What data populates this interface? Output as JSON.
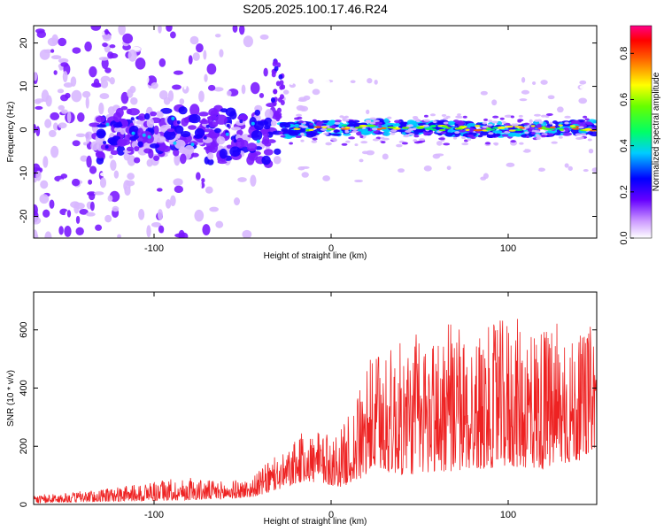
{
  "title": "S205.2025.100.17.46.R24",
  "chart_data": [
    {
      "type": "heatmap",
      "xlabel": "Height of straight line (km)",
      "ylabel": "Frequency (Hz)",
      "xlim": [
        -168,
        150
      ],
      "ylim": [
        -25,
        24
      ],
      "xticks": [
        -100,
        0,
        100
      ],
      "yticks": [
        -20,
        -10,
        0,
        10,
        20
      ],
      "colorbar": {
        "label": "Normalized spectral amplitude",
        "range": [
          0,
          0.92
        ],
        "ticks": [
          0.0,
          0.2,
          0.4,
          0.6,
          0.8
        ],
        "colors": [
          "#ffffff",
          "#9933ff",
          "#0000ff",
          "#00ffff",
          "#00ff00",
          "#ffff00",
          "#ff0000",
          "#ff00aa"
        ]
      },
      "description_regions": [
        {
          "x_range": [
            -168,
            -30
          ],
          "freq_range": [
            -25,
            24
          ],
          "amplitude": 0.15,
          "pattern": "scattered noise"
        },
        {
          "x_range": [
            -130,
            -30
          ],
          "freq_range": [
            -6,
            4
          ],
          "amplitude": 0.3,
          "pattern": "band"
        },
        {
          "x_range": [
            -30,
            150
          ],
          "freq_range": [
            -2,
            2
          ],
          "amplitude": 0.7,
          "pattern": "narrow carrier"
        }
      ]
    },
    {
      "type": "line",
      "xlabel": "Height of straight line (km)",
      "ylabel": "SNR (10 * v/v)",
      "xlim": [
        -168,
        150
      ],
      "ylim": [
        0,
        730
      ],
      "xticks": [
        -100,
        0,
        100
      ],
      "yticks": [
        0,
        200,
        400,
        600
      ],
      "color": "#ee2222",
      "envelope": {
        "x": [
          -168,
          -140,
          -120,
          -100,
          -80,
          -60,
          -45,
          -35,
          -25,
          -15,
          -5,
          5,
          15,
          25,
          40,
          60,
          80,
          100,
          120,
          140,
          150
        ],
        "low": [
          5,
          8,
          10,
          12,
          15,
          18,
          25,
          40,
          60,
          80,
          70,
          60,
          80,
          120,
          100,
          110,
          120,
          130,
          120,
          150,
          200
        ],
        "high": [
          30,
          45,
          60,
          80,
          90,
          80,
          90,
          150,
          180,
          260,
          240,
          250,
          380,
          520,
          560,
          600,
          580,
          650,
          620,
          560,
          650
        ]
      }
    }
  ]
}
